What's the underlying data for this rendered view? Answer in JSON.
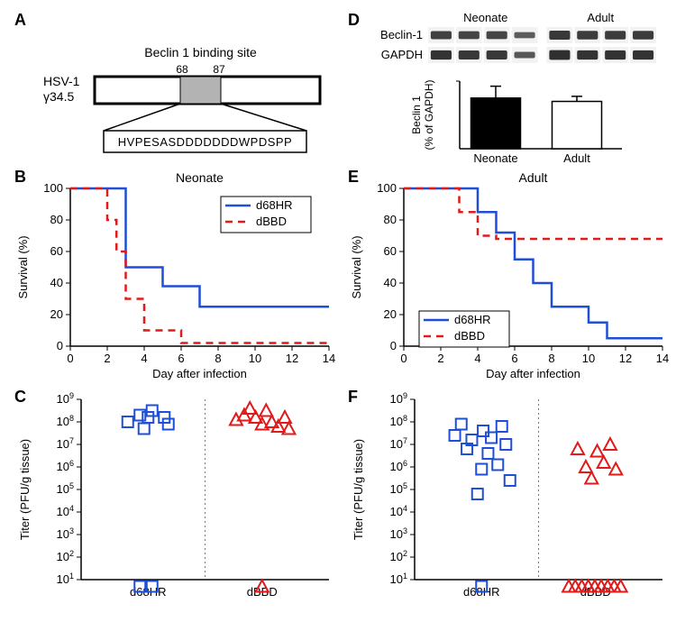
{
  "panelA": {
    "label": "A",
    "titleTop": "Beclin 1 binding site",
    "leftLabelTop": "HSV-1",
    "leftLabelBottom": "γ34.5",
    "residueStart": "68",
    "residueEnd": "87",
    "sequence": "HVPESASDDDDDDDWPDSPP",
    "colors": {
      "stroke": "#000000",
      "grayFill": "#b3b3b3",
      "textColor": "#000000",
      "fontSize": 14
    }
  },
  "panelB": {
    "label": "B",
    "title": "Neonate",
    "xLabel": "Day after infection",
    "yLabel": "Survival (%)",
    "xlim": [
      0,
      14
    ],
    "xtick_step": 2,
    "ylim": [
      0,
      100
    ],
    "ytick_step": 20,
    "legend": {
      "items": [
        {
          "label": "d68HR",
          "color": "#1f4fd6",
          "dash": "solid"
        },
        {
          "label": "dBBD",
          "color": "#e11a1a",
          "dash": "dash"
        }
      ]
    },
    "series": {
      "d68HR": {
        "color": "#1f4fd6",
        "dash": "solid",
        "steps": [
          [
            0,
            100
          ],
          [
            2,
            100
          ],
          [
            3,
            50
          ],
          [
            4,
            50
          ],
          [
            5,
            38
          ],
          [
            7,
            25
          ],
          [
            14,
            25
          ]
        ]
      },
      "dBBD": {
        "color": "#e11a1a",
        "dash": "dash",
        "steps": [
          [
            0,
            100
          ],
          [
            2,
            80
          ],
          [
            2.5,
            60
          ],
          [
            3,
            30
          ],
          [
            4,
            10
          ],
          [
            5,
            10
          ],
          [
            6,
            2
          ],
          [
            14,
            2
          ]
        ]
      }
    },
    "colors": {
      "axis": "#000000",
      "bg": "#ffffff",
      "fontSize": 13
    }
  },
  "panelC": {
    "label": "C",
    "yLabel": "Titer (PFU/g tissue)",
    "xcats": [
      "d68HR",
      "dBBD"
    ],
    "ylim_exp": [
      1,
      9
    ],
    "ytick_exp": [
      1,
      2,
      3,
      4,
      5,
      6,
      7,
      8,
      9
    ],
    "lod_band_to_exp": 1,
    "points": {
      "d68HR": {
        "shape": "square",
        "color": "#1f4fd6",
        "values_exp": [
          [
            -0.25,
            8.0
          ],
          [
            -0.1,
            8.3
          ],
          [
            0.0,
            8.2
          ],
          [
            0.05,
            8.5
          ],
          [
            0.2,
            8.2
          ],
          [
            0.25,
            7.9
          ],
          [
            -0.05,
            7.7
          ],
          [
            -0.1,
            0.7
          ],
          [
            0.05,
            0.7
          ]
        ]
      },
      "dBBD": {
        "shape": "triangle",
        "color": "#e11a1a",
        "values_exp": [
          [
            -0.32,
            8.1
          ],
          [
            -0.22,
            8.3
          ],
          [
            -0.15,
            8.6
          ],
          [
            -0.08,
            8.2
          ],
          [
            0.0,
            7.9
          ],
          [
            0.05,
            8.5
          ],
          [
            0.12,
            8.0
          ],
          [
            0.2,
            7.8
          ],
          [
            0.28,
            8.2
          ],
          [
            0.33,
            7.7
          ],
          [
            0.0,
            0.7
          ]
        ]
      }
    },
    "colors": {
      "axis": "#000000",
      "lod": "#dcdcdc",
      "divider": "#777777",
      "fontSize": 13
    }
  },
  "panelD": {
    "label": "D",
    "blot": {
      "rowLabels": [
        "Beclin-1",
        "GAPDH"
      ],
      "groups": [
        "Neonate",
        "Adult"
      ],
      "lanesPerGroup": 4,
      "colors": {
        "band": "#2a2a2a",
        "bg": "#f2f2f2",
        "text": "#000000",
        "fontSize": 13
      }
    },
    "bar": {
      "yLabel": "Beclin 1\n(% of GAPDH)",
      "cats": [
        "Neonate",
        "Adult"
      ],
      "values": [
        30,
        28
      ],
      "errs": [
        7,
        3
      ],
      "fills": [
        "#000000",
        "#ffffff"
      ],
      "ylim": [
        0,
        40
      ],
      "colors": {
        "axis": "#000000",
        "fontSize": 13
      }
    }
  },
  "panelE": {
    "label": "E",
    "title": "Adult",
    "xLabel": "Day after infection",
    "yLabel": "Survival (%)",
    "xlim": [
      0,
      14
    ],
    "xtick_step": 2,
    "ylim": [
      0,
      100
    ],
    "ytick_step": 20,
    "legend": {
      "items": [
        {
          "label": "d68HR",
          "color": "#1f4fd6",
          "dash": "solid"
        },
        {
          "label": "dBBD",
          "color": "#e11a1a",
          "dash": "dash"
        }
      ]
    },
    "series": {
      "d68HR": {
        "color": "#1f4fd6",
        "dash": "solid",
        "steps": [
          [
            0,
            100
          ],
          [
            3,
            100
          ],
          [
            4,
            85
          ],
          [
            5,
            72
          ],
          [
            6,
            55
          ],
          [
            7,
            40
          ],
          [
            8,
            25
          ],
          [
            10,
            15
          ],
          [
            11,
            5
          ],
          [
            14,
            5
          ]
        ]
      },
      "dBBD": {
        "color": "#e11a1a",
        "dash": "dash",
        "steps": [
          [
            0,
            100
          ],
          [
            2,
            100
          ],
          [
            3,
            85
          ],
          [
            4,
            70
          ],
          [
            5,
            68
          ],
          [
            14,
            68
          ]
        ]
      }
    },
    "colors": {
      "axis": "#000000",
      "bg": "#ffffff",
      "fontSize": 13
    }
  },
  "panelF": {
    "label": "F",
    "yLabel": "Titer (PFU/g tissue)",
    "xcats": [
      "d68HR",
      "dBBD"
    ],
    "ylim_exp": [
      1,
      9
    ],
    "ytick_exp": [
      1,
      2,
      3,
      4,
      5,
      6,
      7,
      8,
      9
    ],
    "lod_band_to_exp": 1,
    "points": {
      "d68HR": {
        "shape": "square",
        "color": "#1f4fd6",
        "values_exp": [
          [
            -0.33,
            7.4
          ],
          [
            -0.25,
            7.9
          ],
          [
            -0.18,
            6.8
          ],
          [
            -0.12,
            7.2
          ],
          [
            -0.05,
            4.8
          ],
          [
            0.02,
            7.6
          ],
          [
            0.08,
            6.6
          ],
          [
            0.12,
            7.3
          ],
          [
            0.2,
            6.1
          ],
          [
            0.25,
            7.8
          ],
          [
            0.3,
            7.0
          ],
          [
            0.35,
            5.4
          ],
          [
            0.0,
            5.9
          ],
          [
            0.0,
            0.7
          ]
        ]
      },
      "dBBD": {
        "shape": "triangle",
        "color": "#e11a1a",
        "values_exp": [
          [
            -0.22,
            6.8
          ],
          [
            -0.12,
            6.0
          ],
          [
            -0.05,
            5.5
          ],
          [
            0.02,
            6.7
          ],
          [
            0.1,
            6.2
          ],
          [
            0.18,
            7.0
          ],
          [
            0.25,
            5.9
          ],
          [
            -0.33,
            0.7
          ],
          [
            -0.25,
            0.7
          ],
          [
            -0.17,
            0.7
          ],
          [
            -0.09,
            0.7
          ],
          [
            -0.01,
            0.7
          ],
          [
            0.07,
            0.7
          ],
          [
            0.15,
            0.7
          ],
          [
            0.23,
            0.7
          ],
          [
            0.31,
            0.7
          ]
        ]
      }
    },
    "colors": {
      "axis": "#000000",
      "lod": "#dcdcdc",
      "divider": "#777777",
      "fontSize": 13
    }
  }
}
